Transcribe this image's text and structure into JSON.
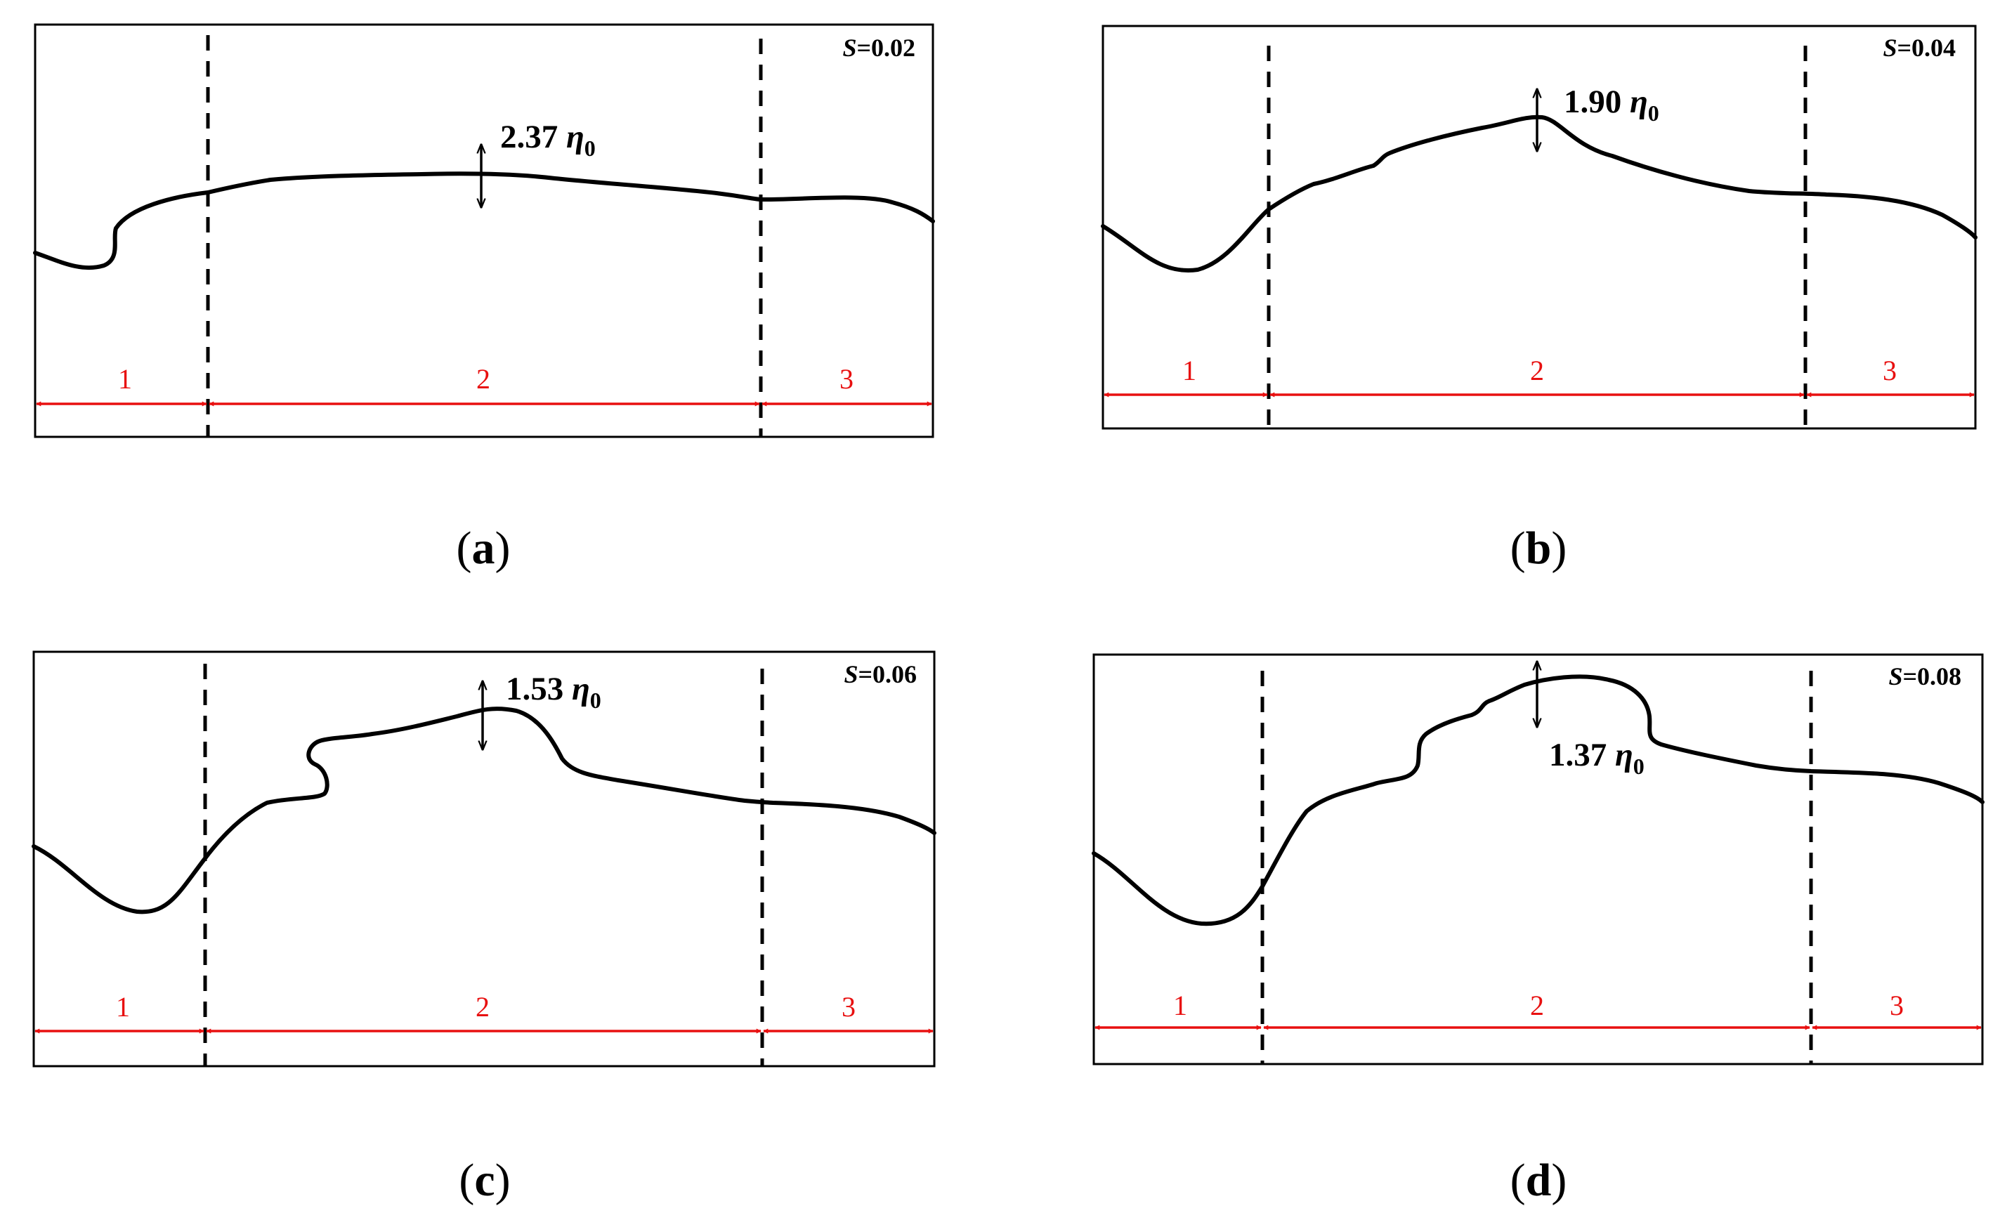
{
  "figure": {
    "regions": [
      "1",
      "2",
      "3"
    ],
    "param_symbol": "S",
    "amplitude_unit": "η",
    "amplitude_subscript": "0",
    "colors": {
      "region_marker": "#e81010",
      "profile": "#000000"
    },
    "panels": [
      {
        "caption_letter": "a",
        "param_value": "=0.02",
        "amplitude_value": "2.37"
      },
      {
        "caption_letter": "b",
        "param_value": "=0.04",
        "amplitude_value": "1.90"
      },
      {
        "caption_letter": "c",
        "param_value": "=0.06",
        "amplitude_value": "1.53"
      },
      {
        "caption_letter": "d",
        "param_value": "=0.08",
        "amplitude_value": "1.37"
      }
    ]
  }
}
